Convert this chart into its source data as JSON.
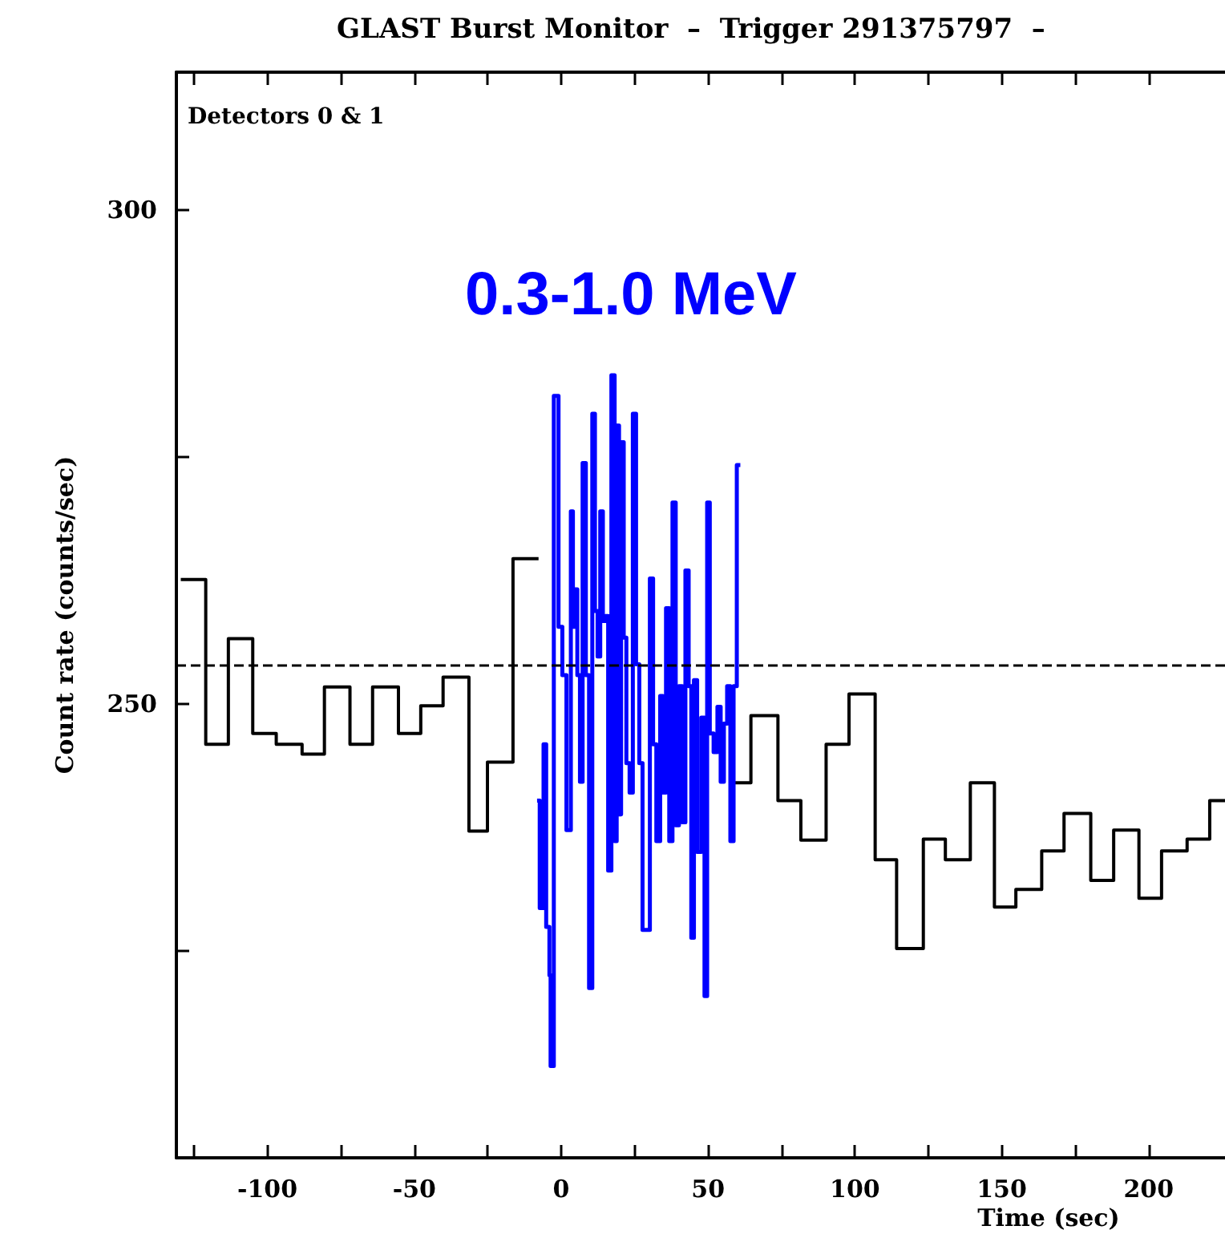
{
  "chart_data": {
    "type": "step",
    "title": "GLAST Burst Monitor  –  Trigger 291375797  –",
    "xlabel": "Time (sec)",
    "ylabel": "Count rate (counts/sec)",
    "annotations": [
      "Detectors 0 & 1"
    ],
    "xlim": [
      -131,
      226
    ],
    "ylim": [
      204,
      314
    ],
    "xticks": [
      {
        "value": -125,
        "label": null
      },
      -100,
      {
        "value": -75,
        "label": null
      },
      -50,
      {
        "value": -25,
        "label": null
      },
      0,
      {
        "value": 25,
        "label": null
      },
      50,
      {
        "value": 75,
        "label": null
      },
      100,
      {
        "value": 125,
        "label": null
      },
      150,
      {
        "value": 175,
        "label": null
      },
      200
    ],
    "yticks": [
      {
        "value": 225,
        "label": null
      },
      250,
      {
        "value": 275,
        "label": null
      },
      300
    ],
    "grid": false,
    "legend": false,
    "marker": "none",
    "line_style": "solid",
    "ref_lines": [
      {
        "axis": "y",
        "value": 254,
        "line_style": "dashed",
        "color": "#000000"
      }
    ],
    "series": [
      {
        "color": "#000000",
        "x": [
          -129.5,
          -121.0,
          -113.3,
          -105.0,
          -97.0,
          -88.2,
          -80.6,
          -71.9,
          -64.2,
          -55.4,
          -47.8,
          -40.2,
          -31.4,
          -25.1,
          -16.4,
          -7.7,
          -7.6,
          59.2,
          64.6,
          73.8,
          81.6,
          90.2,
          98.0,
          106.9,
          114.2,
          123.3,
          130.8,
          139.3,
          147.5,
          154.8,
          163.6,
          171.2,
          180.3,
          188.1,
          196.7,
          204.4,
          213.1,
          220.8,
          226
        ],
        "values": [
          262.6,
          245.9,
          256.6,
          247.0,
          245.9,
          244.9,
          251.7,
          245.9,
          251.7,
          247.0,
          249.8,
          252.7,
          237.1,
          244.1,
          264.7,
          264.7,
          null,
          242.0,
          248.8,
          240.2,
          236.2,
          245.9,
          251.0,
          234.2,
          225.2,
          236.3,
          234.2,
          242.0,
          229.4,
          231.2,
          235.1,
          238.9,
          232.1,
          237.2,
          230.3,
          235.1,
          236.3,
          240.2,
          240.2
        ]
      },
      {
        "name": "0.3-1.0 MeV",
        "color": "#0000ff",
        "x": [
          -8.2,
          -7.3,
          -6.0,
          -5.1,
          -4.0,
          -3.6,
          -2.5,
          -0.9,
          0.4,
          1.8,
          3.3,
          4.0,
          4.7,
          5.5,
          6.4,
          7.3,
          8.4,
          9.5,
          10.6,
          11.5,
          12.4,
          13.3,
          14.2,
          15.1,
          16.0,
          17.1,
          18.2,
          18.9,
          19.7,
          20.4,
          21.3,
          22.2,
          23.3,
          24.4,
          25.5,
          26.6,
          27.7,
          30.2,
          31.3,
          32.4,
          33.7,
          34.6,
          35.7,
          36.8,
          37.9,
          39.0,
          40.1,
          41.2,
          42.3,
          43.4,
          44.3,
          45.2,
          46.3,
          47.7,
          48.8,
          49.7,
          50.6,
          51.9,
          53.2,
          54.3,
          55.4,
          56.5,
          57.6,
          58.7,
          59.8,
          61.0
        ],
        "values": [
          240.2,
          229.3,
          245.9,
          227.4,
          222.5,
          213.3,
          281.2,
          257.8,
          252.9,
          237.2,
          269.5,
          257.8,
          261.6,
          252.9,
          242.1,
          274.4,
          252.9,
          221.2,
          279.4,
          259.4,
          254.8,
          269.5,
          258.4,
          258.9,
          233.1,
          283.3,
          236.1,
          278.2,
          238.8,
          276.5,
          256.7,
          244.0,
          241.0,
          279.4,
          254.0,
          244.0,
          227.1,
          262.7,
          245.9,
          236.1,
          250.8,
          241.0,
          259.7,
          236.1,
          270.4,
          237.7,
          251.8,
          238.0,
          263.5,
          251.8,
          226.3,
          252.4,
          235.0,
          248.6,
          220.4,
          270.4,
          247.0,
          245.1,
          249.7,
          242.1,
          248.0,
          251.8,
          236.1,
          251.8,
          274.2,
          274.2
        ]
      }
    ]
  }
}
